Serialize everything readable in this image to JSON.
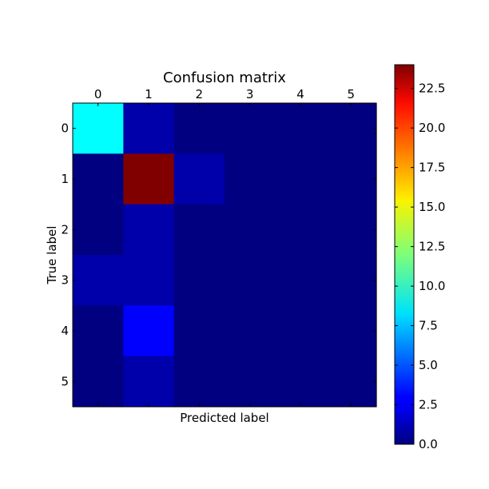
{
  "chart_data": {
    "type": "heatmap",
    "title": "Confusion matrix",
    "xlabel": "Predicted label",
    "ylabel": "True label",
    "x_categories": [
      "0",
      "1",
      "2",
      "3",
      "4",
      "5"
    ],
    "y_categories": [
      "0",
      "1",
      "2",
      "3",
      "4",
      "5"
    ],
    "x_axis_position": "top",
    "values": [
      [
        9,
        1,
        0,
        0,
        0,
        0
      ],
      [
        0,
        24,
        1,
        0,
        0,
        0
      ],
      [
        0,
        1,
        0,
        0,
        0,
        0
      ],
      [
        1,
        1,
        0,
        0,
        0,
        0
      ],
      [
        0,
        3,
        0,
        0,
        0,
        0
      ],
      [
        0,
        1,
        0,
        0,
        0,
        0
      ]
    ],
    "colormap": "jet",
    "color_range": [
      0,
      24
    ],
    "colorbar_ticks": [
      "0.0",
      "2.5",
      "5.0",
      "7.5",
      "10.0",
      "12.5",
      "15.0",
      "17.5",
      "20.0",
      "22.5"
    ],
    "colorbar_position": "right",
    "grid": false
  }
}
